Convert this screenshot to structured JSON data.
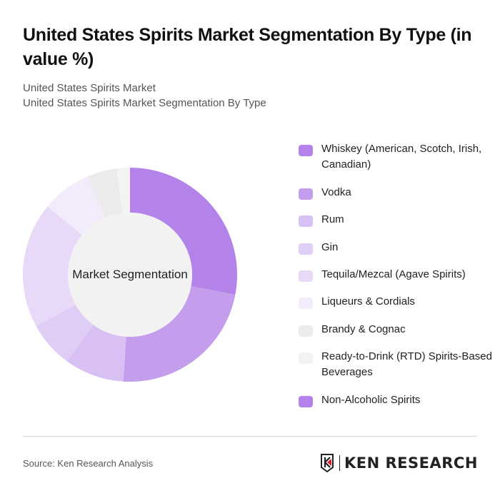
{
  "header": {
    "title": "United States Spirits Market Segmentation By Type (in value %)",
    "subtitle_line1": "United States Spirits Market",
    "subtitle_line2": "United States Spirits Market Segmentation By Type"
  },
  "chart_data": {
    "type": "pie",
    "variant": "donut",
    "title": "United States Spirits Market Segmentation By Type (in value %)",
    "center_label": "Market Segmentation",
    "categories": [
      "Whiskey (American, Scotch, Irish, Canadian)",
      "Vodka",
      "Rum",
      "Gin",
      "Tequila/Mezcal (Agave Spirits)",
      "Liqueurs & Cordials",
      "Brandy & Cognac",
      "Ready-to-Drink (RTD) Spirits-Based Beverages",
      "Non-Alcoholic Spirits"
    ],
    "values": [
      28,
      23,
      9,
      7,
      19,
      7.5,
      4.5,
      2,
      0
    ],
    "colors": [
      "#b383e9",
      "#c59ded",
      "#d9c0f4",
      "#e0cdf6",
      "#e8d9f9",
      "#f2ebfc",
      "#ebebeb",
      "#f3f3f3",
      "#b383e9"
    ],
    "legend_position": "right",
    "start_angle_deg": 0,
    "direction": "clockwise"
  },
  "legend": {
    "items": [
      {
        "label": "Whiskey (American, Scotch, Irish, Canadian)",
        "color": "#b383e9"
      },
      {
        "label": "Vodka",
        "color": "#c59ded"
      },
      {
        "label": "Rum",
        "color": "#d9c0f4"
      },
      {
        "label": "Gin",
        "color": "#e0cdf6"
      },
      {
        "label": "Tequila/Mezcal (Agave Spirits)",
        "color": "#e8d9f9"
      },
      {
        "label": "Liqueurs & Cordials",
        "color": "#f2ebfc"
      },
      {
        "label": "Brandy & Cognac",
        "color": "#ebebeb"
      },
      {
        "label": "Ready-to-Drink (RTD) Spirits-Based Beverages",
        "color": "#f3f3f3"
      },
      {
        "label": "Non-Alcoholic Spirits",
        "color": "#b383e9"
      }
    ]
  },
  "footer": {
    "source": "Source: Ken Research Analysis",
    "logo_text": "KEN RESEARCH"
  }
}
